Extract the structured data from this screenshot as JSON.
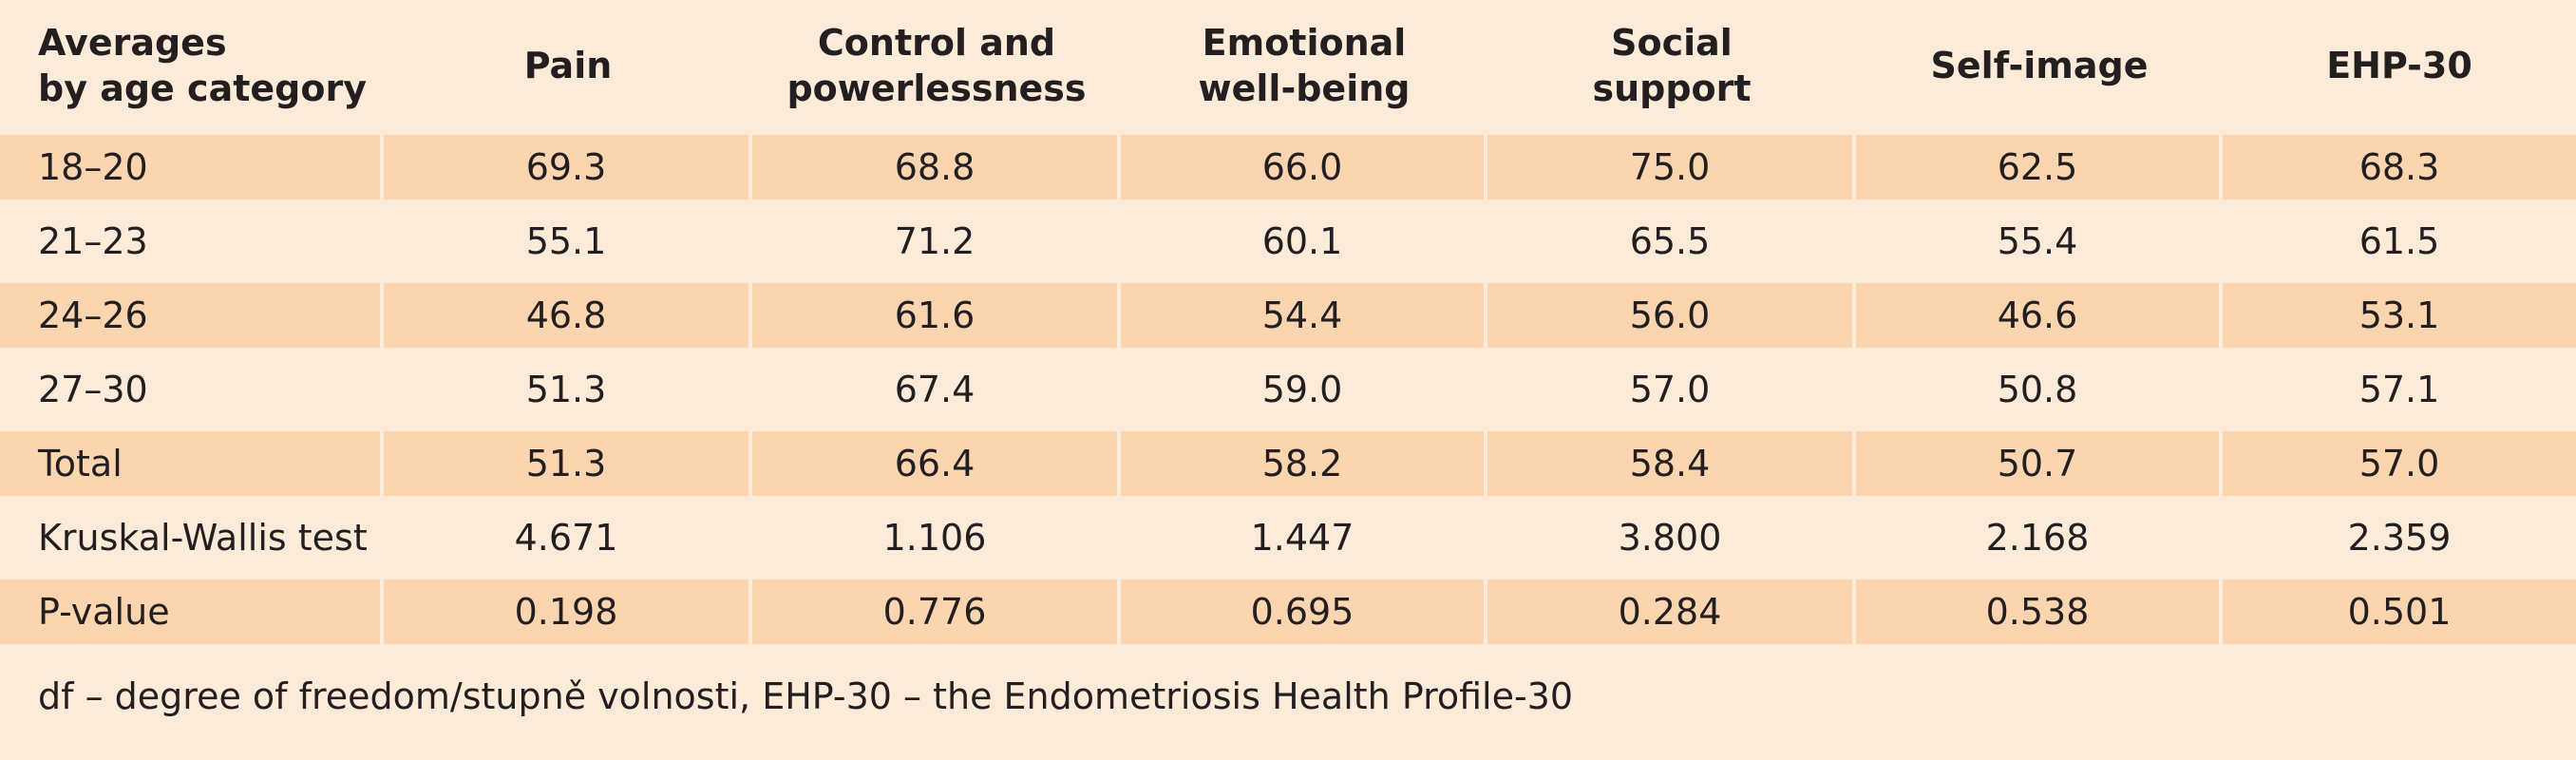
{
  "table": {
    "headers": [
      "Averages\nby age category",
      "Pain",
      "Control and\npowerlessness",
      "Emotional\nwell-being",
      "Social\nsupport",
      "Self-image",
      "EHP-30"
    ],
    "rows": [
      [
        "18–20",
        "69.3",
        "68.8",
        "66.0",
        "75.0",
        "62.5",
        "68.3"
      ],
      [
        "21–23",
        "55.1",
        "71.2",
        "60.1",
        "65.5",
        "55.4",
        "61.5"
      ],
      [
        "24–26",
        "46.8",
        "61.6",
        "54.4",
        "56.0",
        "46.6",
        "53.1"
      ],
      [
        "27–30",
        "51.3",
        "67.4",
        "59.0",
        "57.0",
        "50.8",
        "57.1"
      ],
      [
        "Total",
        "51.3",
        "66.4",
        "58.2",
        "58.4",
        "50.7",
        "57.0"
      ],
      [
        "Kruskal-Wallis test",
        "4.671",
        "1.106",
        "1.447",
        "3.800",
        "2.168",
        "2.359"
      ],
      [
        "P-value",
        "0.198",
        "0.776",
        "0.695",
        "0.284",
        "0.538",
        "0.501"
      ]
    ]
  },
  "footnote": "df – degree of freedom/stupně volnosti, EHP-30 – the Endometriosis Health Profile-30",
  "colors": {
    "background": "#fdebd9",
    "shaded_row": "#fbd4b0",
    "text": "#231f20"
  }
}
